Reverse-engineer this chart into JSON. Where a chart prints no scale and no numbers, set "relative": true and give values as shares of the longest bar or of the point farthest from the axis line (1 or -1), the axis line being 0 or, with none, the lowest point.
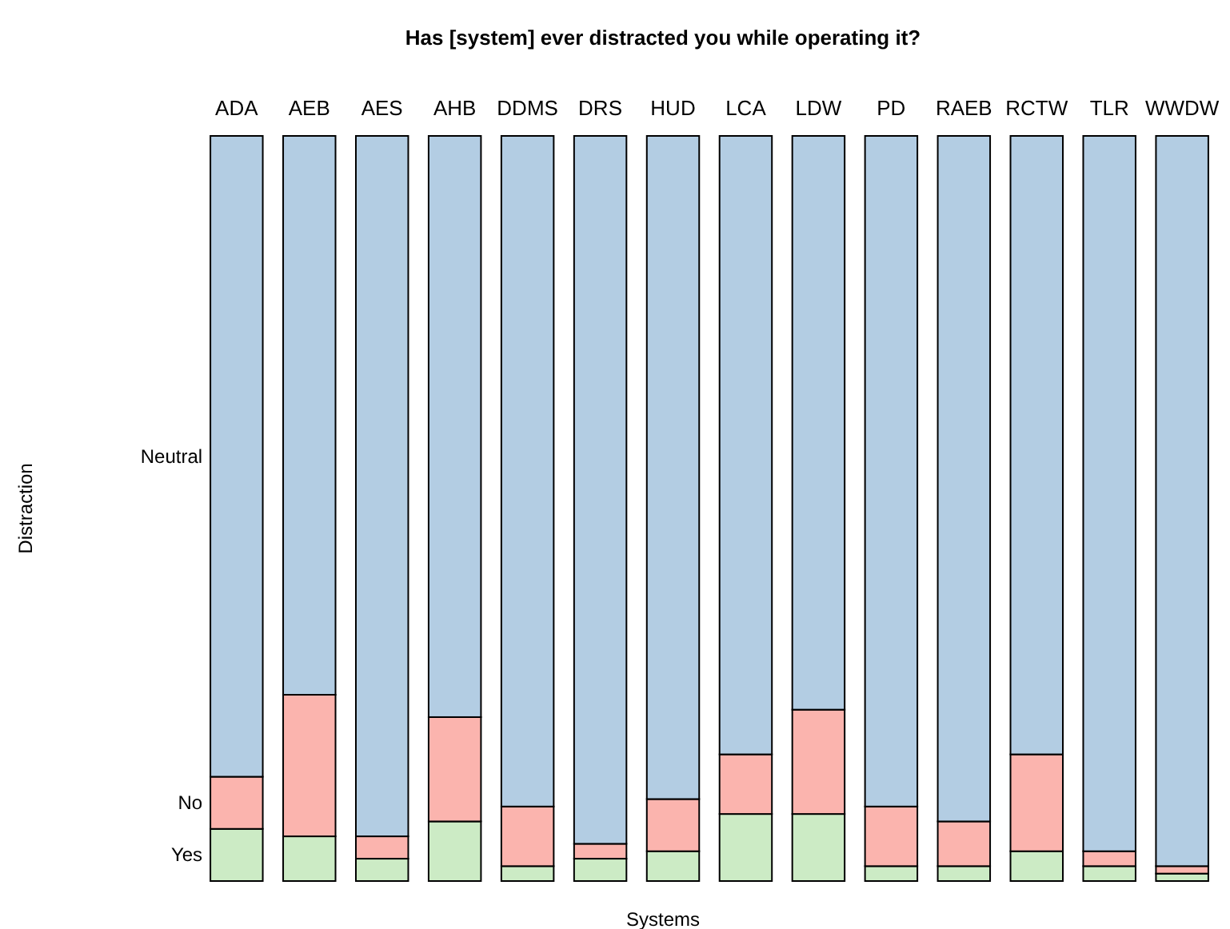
{
  "chart_data": {
    "type": "bar",
    "title": "Has [system] ever distracted you while operating it?",
    "xlabel": "Systems",
    "annotations": [
      "Distraction"
    ],
    "stacked": true,
    "relative": true,
    "categories": [
      "ADA",
      "AEB",
      "AES",
      "AHB",
      "DDMS",
      "DRS",
      "HUD",
      "LCA",
      "LDW",
      "PD",
      "RAEB",
      "RCTW",
      "TLR",
      "WWDW"
    ],
    "series": [
      {
        "name": "Yes",
        "color": "#ccebc5",
        "values": [
          0.07,
          0.06,
          0.03,
          0.08,
          0.02,
          0.03,
          0.04,
          0.09,
          0.09,
          0.02,
          0.02,
          0.04,
          0.02,
          0.01
        ]
      },
      {
        "name": "No",
        "color": "#fbb4ae",
        "values": [
          0.07,
          0.19,
          0.03,
          0.14,
          0.08,
          0.02,
          0.07,
          0.08,
          0.14,
          0.08,
          0.06,
          0.13,
          0.02,
          0.01
        ]
      },
      {
        "name": "Neutral",
        "color": "#b3cde3",
        "values": [
          0.86,
          0.75,
          0.94,
          0.78,
          0.9,
          0.95,
          0.89,
          0.83,
          0.77,
          0.9,
          0.92,
          0.83,
          0.96,
          0.98
        ]
      }
    ]
  }
}
